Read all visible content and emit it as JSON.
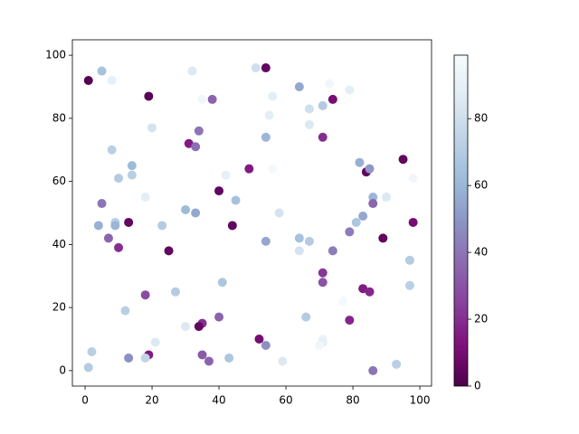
{
  "chart_data": {
    "type": "scatter",
    "x": [
      1,
      5,
      8,
      19,
      32,
      35,
      38,
      51,
      54,
      56,
      55,
      64,
      73,
      79,
      71,
      67,
      74,
      67,
      20,
      34,
      31,
      33,
      54,
      71,
      8,
      14,
      14,
      10,
      42,
      49,
      56,
      40,
      45,
      18,
      5,
      30,
      33,
      58,
      4,
      9,
      9,
      13,
      23,
      44,
      7,
      10,
      25,
      54,
      64,
      67,
      64,
      74,
      82,
      84,
      85,
      86,
      90,
      86,
      83,
      81,
      79,
      89,
      95,
      98,
      98,
      97,
      97,
      71,
      71,
      77,
      83,
      85,
      79,
      66,
      52,
      54,
      59,
      71,
      71,
      70,
      86,
      93,
      41,
      40,
      35,
      34,
      35,
      37,
      43,
      30,
      27,
      18,
      12,
      21,
      19,
      18,
      13,
      2,
      1
    ],
    "y": [
      92,
      95,
      92,
      87,
      95,
      86,
      86,
      96,
      96,
      87,
      81,
      90,
      91,
      89,
      84,
      83,
      86,
      78,
      77,
      76,
      72,
      71,
      74,
      74,
      70,
      65,
      62,
      61,
      62,
      64,
      64,
      57,
      54,
      55,
      53,
      51,
      50,
      50,
      46,
      47,
      46,
      47,
      46,
      46,
      42,
      39,
      38,
      41,
      42,
      41,
      38,
      38,
      66,
      63,
      64,
      55,
      55,
      53,
      49,
      47,
      44,
      42,
      67,
      61,
      47,
      35,
      27,
      31,
      28,
      22,
      26,
      25,
      16,
      17,
      10,
      8,
      3,
      10,
      9,
      8,
      0,
      2,
      28,
      17,
      15,
      14,
      5,
      3,
      4,
      14,
      25,
      24,
      19,
      9,
      5,
      4,
      4,
      6,
      1
    ],
    "c": [
      2,
      65,
      90,
      3,
      85,
      95,
      35,
      80,
      5,
      88,
      88,
      55,
      95,
      88,
      70,
      80,
      10,
      85,
      82,
      40,
      15,
      38,
      60,
      20,
      72,
      62,
      72,
      70,
      90,
      15,
      97,
      5,
      65,
      88,
      40,
      62,
      55,
      82,
      58,
      72,
      60,
      5,
      70,
      5,
      35,
      20,
      5,
      55,
      65,
      70,
      82,
      42,
      58,
      5,
      50,
      60,
      85,
      35,
      55,
      68,
      42,
      5,
      5,
      95,
      10,
      70,
      72,
      22,
      30,
      97,
      15,
      18,
      18,
      70,
      10,
      48,
      85,
      92,
      90,
      95,
      40,
      72,
      68,
      35,
      20,
      5,
      32,
      35,
      68,
      85,
      70,
      28,
      72,
      85,
      15,
      75,
      48,
      72,
      70
    ],
    "colormap": [
      "#4d004b",
      "#810f7c",
      "#88419d",
      "#8c6bb1",
      "#8c96c6",
      "#9ebcda",
      "#bfd3e6",
      "#e0ecf4",
      "#f7fcfd"
    ],
    "xlim": [
      -3.8,
      103.5
    ],
    "ylim": [
      -4.9,
      104.9
    ],
    "clim": [
      0,
      99
    ],
    "xticks": [
      0,
      20,
      40,
      60,
      80,
      100
    ],
    "yticks": [
      0,
      20,
      40,
      60,
      80,
      100
    ],
    "cticks": [
      0,
      20,
      40,
      60,
      80
    ]
  }
}
